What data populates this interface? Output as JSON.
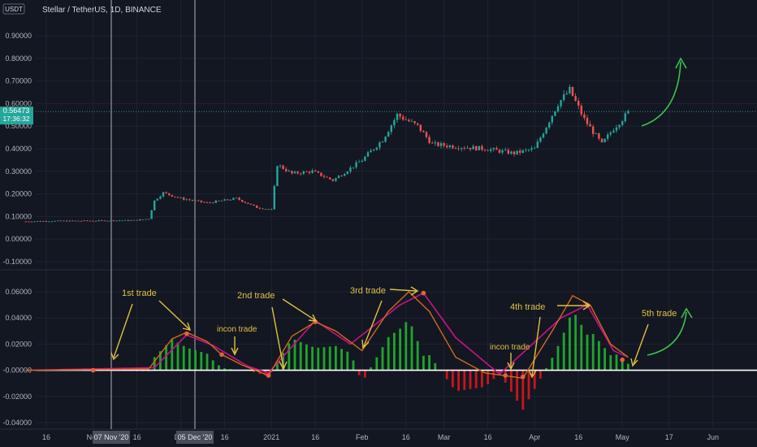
{
  "header": {
    "currency_badge": "USDT",
    "title": "Stellar / TetherUS, 1D, BINANCE"
  },
  "price_badge": {
    "value": "0.56473",
    "countdown": "17:36:32"
  },
  "colors": {
    "background": "#131722",
    "grid": "#1f2330",
    "up": "#26a69a",
    "down": "#ef5350",
    "hist_up": "#1fa52b",
    "hist_down": "#c8161d",
    "signal_orange": "#d2691e",
    "macd_magenta": "#c71585",
    "annotation": "#e0c040",
    "green_arrow": "#3cc44b",
    "price_line": "#26a69a"
  },
  "chart_data": [
    {
      "type": "candlestick",
      "title": "Stellar / TetherUS, 1D, BINANCE",
      "y_ticks": [
        "0.90000",
        "0.80000",
        "0.70000",
        "0.60000",
        "0.50000",
        "0.40000",
        "0.30000",
        "0.20000",
        "0.10000",
        "0.00000",
        "-0.10000"
      ],
      "ylim": [
        -0.12,
        0.96
      ],
      "last_price": 0.56473,
      "approx_close_path": [
        [
          "2020-10-09",
          0.078
        ],
        [
          "2020-10-20",
          0.08
        ],
        [
          "2020-11-01",
          0.081
        ],
        [
          "2020-11-15",
          0.083
        ],
        [
          "2020-11-20",
          0.09
        ],
        [
          "2020-11-22",
          0.17
        ],
        [
          "2020-11-25",
          0.205
        ],
        [
          "2020-12-01",
          0.18
        ],
        [
          "2020-12-10",
          0.16
        ],
        [
          "2020-12-20",
          0.18
        ],
        [
          "2020-12-27",
          0.14
        ],
        [
          "2021-01-01",
          0.13
        ],
        [
          "2021-01-03",
          0.33
        ],
        [
          "2021-01-08",
          0.29
        ],
        [
          "2021-01-15",
          0.3
        ],
        [
          "2021-01-22",
          0.26
        ],
        [
          "2021-02-01",
          0.35
        ],
        [
          "2021-02-08",
          0.44
        ],
        [
          "2021-02-13",
          0.55
        ],
        [
          "2021-02-20",
          0.5
        ],
        [
          "2021-02-25",
          0.42
        ],
        [
          "2021-03-05",
          0.41
        ],
        [
          "2021-03-15",
          0.4
        ],
        [
          "2021-03-25",
          0.38
        ],
        [
          "2021-04-01",
          0.4
        ],
        [
          "2021-04-05",
          0.5
        ],
        [
          "2021-04-09",
          0.6
        ],
        [
          "2021-04-13",
          0.66
        ],
        [
          "2021-04-18",
          0.53
        ],
        [
          "2021-04-24",
          0.42
        ],
        [
          "2021-04-28",
          0.49
        ],
        [
          "2021-05-03",
          0.56
        ]
      ]
    },
    {
      "type": "line",
      "title": "",
      "y_ticks": [
        "0.06000",
        "0.04000",
        "0.02000",
        "-0.00000",
        "-0.02000",
        "-0.04000"
      ],
      "ylim": [
        -0.042,
        0.068
      ],
      "series": [
        {
          "values": [
            [
              "2020-10-09",
              0.0
            ],
            [
              "2020-11-20",
              0.001
            ],
            [
              "2020-11-28",
              0.024
            ],
            [
              "2020-12-03",
              0.029
            ],
            [
              "2020-12-10",
              0.022
            ],
            [
              "2020-12-15",
              0.012
            ],
            [
              "2020-12-22",
              0.004
            ],
            [
              "2020-12-31",
              -0.004
            ],
            [
              "2021-01-08",
              0.026
            ],
            [
              "2021-01-16",
              0.037
            ],
            [
              "2021-01-23",
              0.03
            ],
            [
              "2021-02-01",
              0.015
            ],
            [
              "2021-02-10",
              0.045
            ],
            [
              "2021-02-17",
              0.06
            ],
            [
              "2021-02-24",
              0.045
            ],
            [
              "2021-03-05",
              0.01
            ],
            [
              "2021-03-15",
              -0.002
            ],
            [
              "2021-03-28",
              -0.006
            ],
            [
              "2021-04-07",
              0.03
            ],
            [
              "2021-04-14",
              0.057
            ],
            [
              "2021-04-20",
              0.05
            ],
            [
              "2021-04-27",
              0.02
            ],
            [
              "2021-05-03",
              0.01
            ]
          ]
        },
        {
          "values": [
            [
              "2020-10-09",
              0.0
            ],
            [
              "2020-11-22",
              0.002
            ],
            [
              "2020-12-03",
              0.027
            ],
            [
              "2020-12-12",
              0.019
            ],
            [
              "2020-12-24",
              0.003
            ],
            [
              "2020-12-31",
              -0.002
            ],
            [
              "2021-01-16",
              0.038
            ],
            [
              "2021-01-28",
              0.02
            ],
            [
              "2021-02-14",
              0.05
            ],
            [
              "2021-02-22",
              0.059
            ],
            [
              "2021-03-05",
              0.025
            ],
            [
              "2021-03-20",
              -0.003
            ],
            [
              "2021-04-10",
              0.04
            ],
            [
              "2021-04-19",
              0.05
            ],
            [
              "2021-04-28",
              0.015
            ],
            [
              "2021-05-03",
              0.01
            ]
          ]
        }
      ]
    }
  ],
  "x_axis": {
    "ticks": [
      "16",
      "Nov",
      "16",
      "Dec",
      "16",
      "2021",
      "16",
      "Feb",
      "16",
      "Mar",
      "16",
      "Apr",
      "16",
      "May",
      "17",
      "Jun"
    ],
    "markers": [
      "07 Nov '20",
      "05 Dec '20"
    ]
  },
  "annotations": {
    "first_trade": "1st trade",
    "second_trade": "2nd trade",
    "third_trade": "3rd trade",
    "fourth_trade": "4th trade",
    "fifth_trade": "5th trade",
    "incon_trade_1": "incon trade",
    "incon_trade_2": "incon trade"
  }
}
